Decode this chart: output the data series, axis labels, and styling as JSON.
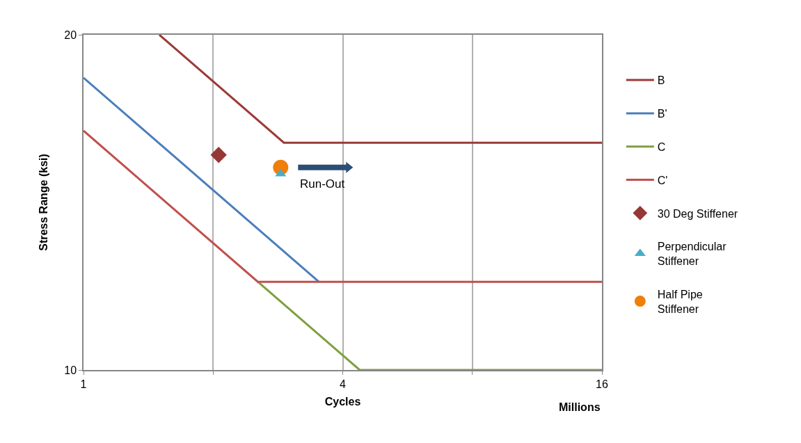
{
  "chart_data": {
    "type": "line",
    "xlabel": "Cycles",
    "ylabel": "Stress Range (ksi)",
    "log": "xy",
    "xlim": [
      1,
      16
    ],
    "xticks": [
      1,
      {
        "value": 2,
        "label": null
      },
      4,
      {
        "value": 8,
        "label": null
      },
      16
    ],
    "ylim": [
      10,
      20
    ],
    "yticks": [
      10,
      20
    ],
    "grid": "x",
    "legend": "right",
    "marker": "none",
    "line_style": "solid",
    "series": [
      {
        "name": "B",
        "color": "#9b3b37",
        "x": [
          1.5,
          2.92,
          16
        ],
        "values": [
          20,
          16,
          16
        ]
      },
      {
        "name": "B'",
        "color": "#4a7ebb",
        "x": [
          1,
          3.52
        ],
        "values": [
          18.3,
          12
        ]
      },
      {
        "name": "C",
        "color": "#7f9f3e",
        "x": [
          2.54,
          4.38,
          16
        ],
        "values": [
          12,
          10,
          10
        ]
      },
      {
        "name": "C'",
        "color": "#c0504d",
        "x": [
          1,
          2.54,
          16
        ],
        "values": [
          16.4,
          12,
          12
        ]
      },
      {
        "name": "30 Deg Stiffener",
        "type": "scatter",
        "marker": "diamond",
        "color": "#953735",
        "x": [
          2.06
        ],
        "values": [
          15.6
        ]
      },
      {
        "name": "Perpendicular Stiffener",
        "type": "scatter",
        "marker": "triangle",
        "color": "#4bacc6",
        "x": [
          2.87
        ],
        "values": [
          15.0
        ]
      },
      {
        "name": "Half Pipe Stiffener",
        "type": "scatter",
        "marker": "circle",
        "color": "#f07f09",
        "x": [
          2.87
        ],
        "values": [
          15.2
        ]
      }
    ],
    "annotations": [
      {
        "text": "Run-Out",
        "x": 2.87,
        "y": 15.2
      },
      "Millions"
    ]
  }
}
